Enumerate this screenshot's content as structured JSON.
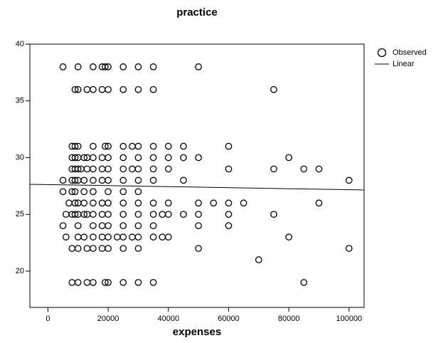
{
  "chart_data": {
    "type": "scatter",
    "title": "practice",
    "x_label": "expenses",
    "xlim": [
      -6000,
      105000
    ],
    "ylim": [
      16.8,
      40
    ],
    "xticks": [
      0,
      20000,
      40000,
      60000,
      80000,
      100000
    ],
    "yticks": [
      20,
      25,
      30,
      35,
      40
    ],
    "legend": "top-right",
    "series": [
      {
        "name": "Observed",
        "color": "#000000",
        "marker": "circle",
        "x": [
          5000,
          10000,
          15000,
          18000,
          19000,
          20000,
          25000,
          30000,
          35000,
          50000,
          9000,
          10000,
          13000,
          15000,
          18000,
          20000,
          25000,
          30000,
          35000,
          75000,
          8000,
          9000,
          10000,
          15000,
          19000,
          20000,
          25000,
          28000,
          30000,
          35000,
          40000,
          45000,
          60000,
          8000,
          9000,
          10000,
          12000,
          13000,
          15000,
          18000,
          20000,
          25000,
          30000,
          35000,
          40000,
          45000,
          50000,
          80000,
          8000,
          9000,
          10000,
          11000,
          13000,
          15000,
          18000,
          20000,
          25000,
          28000,
          30000,
          35000,
          40000,
          60000,
          75000,
          85000,
          90000,
          5000,
          8000,
          9000,
          10000,
          12000,
          15000,
          18000,
          20000,
          25000,
          30000,
          35000,
          45000,
          100000,
          5000,
          8000,
          9000,
          12000,
          15000,
          20000,
          25000,
          30000,
          7000,
          9000,
          10000,
          12000,
          15000,
          18000,
          20000,
          25000,
          30000,
          35000,
          40000,
          50000,
          55000,
          60000,
          65000,
          90000,
          6000,
          8000,
          9000,
          10000,
          12000,
          13000,
          15000,
          18000,
          20000,
          25000,
          30000,
          35000,
          38000,
          40000,
          45000,
          50000,
          60000,
          75000,
          5000,
          10000,
          15000,
          18000,
          20000,
          25000,
          30000,
          35000,
          50000,
          60000,
          6000,
          10000,
          12000,
          15000,
          18000,
          20000,
          23000,
          25000,
          28000,
          30000,
          35000,
          38000,
          40000,
          80000,
          8000,
          10000,
          13000,
          15000,
          18000,
          20000,
          25000,
          30000,
          50000,
          100000,
          70000,
          8000,
          10000,
          13000,
          15000,
          19000,
          20000,
          25000,
          30000,
          35000,
          85000
        ],
        "y": [
          38,
          38,
          38,
          38,
          38,
          38,
          38,
          38,
          38,
          38,
          36,
          36,
          36,
          36,
          36,
          36,
          36,
          36,
          36,
          36,
          31,
          31,
          31,
          31,
          31,
          31,
          31,
          31,
          31,
          31,
          31,
          31,
          31,
          30,
          30,
          30,
          30,
          30,
          30,
          30,
          30,
          30,
          30,
          30,
          30,
          30,
          30,
          30,
          29,
          29,
          29,
          29,
          29,
          29,
          29,
          29,
          29,
          29,
          29,
          29,
          29,
          29,
          29,
          29,
          29,
          28,
          28,
          28,
          28,
          28,
          28,
          28,
          28,
          28,
          28,
          28,
          28,
          28,
          27,
          27,
          27,
          27,
          27,
          27,
          27,
          27,
          26,
          26,
          26,
          26,
          26,
          26,
          26,
          26,
          26,
          26,
          26,
          26,
          26,
          26,
          26,
          26,
          25,
          25,
          25,
          25,
          25,
          25,
          25,
          25,
          25,
          25,
          25,
          25,
          25,
          25,
          25,
          25,
          25,
          25,
          24,
          24,
          24,
          24,
          24,
          24,
          24,
          24,
          24,
          24,
          23,
          23,
          23,
          23,
          23,
          23,
          23,
          23,
          23,
          23,
          23,
          23,
          23,
          23,
          22,
          22,
          22,
          22,
          22,
          22,
          22,
          22,
          22,
          22,
          21,
          19,
          19,
          19,
          19,
          19,
          19,
          19,
          19,
          19,
          19
        ]
      },
      {
        "name": "Linear",
        "color": "#000000",
        "marker": "line",
        "x": [
          -6000,
          105000
        ],
        "y": [
          27.65,
          27.15
        ]
      }
    ]
  }
}
